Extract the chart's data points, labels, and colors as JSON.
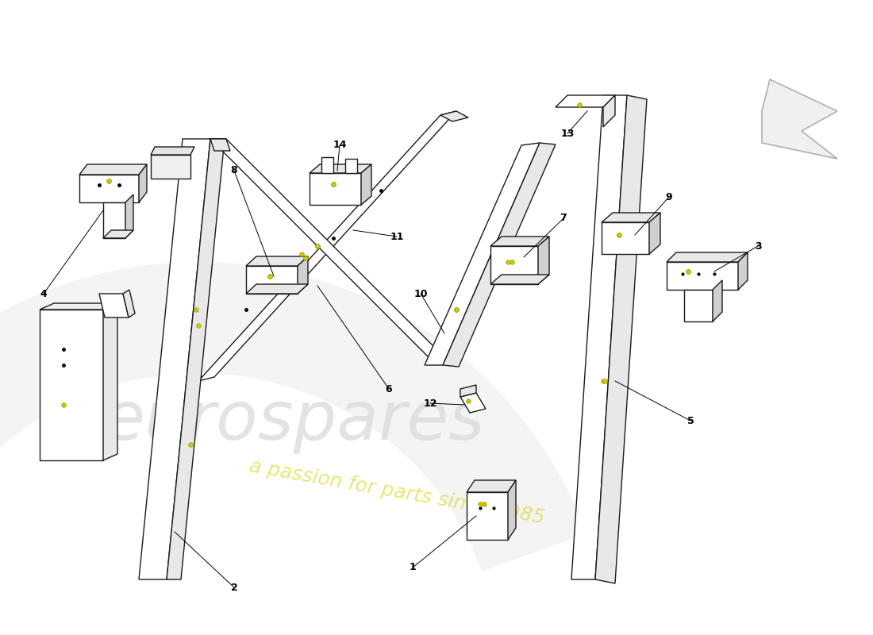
{
  "bg_color": "#ffffff",
  "line_color": "#1a1a1a",
  "face_color": "#ffffff",
  "shade_color": "#e8e8e8",
  "dark_shade": "#d0d0d0",
  "dot_color": "#cccc00",
  "watermark_text_color": "#c8c8c8",
  "passion_text_color": "#d4d400",
  "arrow_color": "#c8c8c8"
}
